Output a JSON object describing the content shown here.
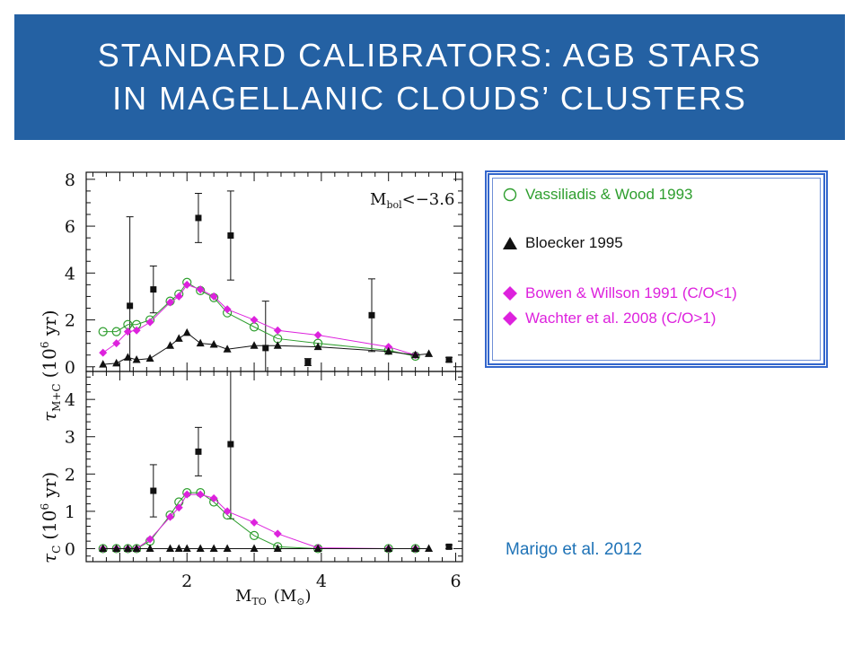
{
  "slide": {
    "title_line1": "STANDARD CALIBRATORS: AGB STARS",
    "title_line2": "IN MAGELLANIC CLOUDS’ CLUSTERS",
    "citation": "Marigo et al. 2012",
    "colors": {
      "title_bg": "#2461a3",
      "title_text": "#ffffff",
      "citation": "#1f73b7",
      "legend_border": "#3366cc"
    }
  },
  "legend": {
    "items": [
      {
        "label": "Vassiliadis & Wood 1993",
        "marker": "circle-open",
        "color": "#2e9e2e"
      },
      {
        "label": "Bloecker 1995",
        "marker": "triangle",
        "color": "#111111"
      },
      {
        "label": "Bowen & Willson 1991 (C/O<1)",
        "marker": "diamond",
        "color": "#dd22dd"
      },
      {
        "label": "Wachter et al. 2008 (C/O>1)",
        "marker": "diamond",
        "color": "#dd22dd"
      }
    ]
  },
  "chart_data": [
    {
      "type": "scatter",
      "panel": "top",
      "ylabel": "τM+C  (10⁶ yr)",
      "annotation": "Mbol<−3.6",
      "xlim": [
        0.5,
        6.1
      ],
      "ylim": [
        -0.2,
        8.3
      ],
      "yticks": [
        0,
        2,
        4,
        6,
        8
      ],
      "series": [
        {
          "marker": "square",
          "color": "#111111",
          "x": [
            1.15,
            1.5,
            2.17,
            2.65,
            3.17,
            3.8,
            4.75,
            5.9
          ],
          "y": [
            2.6,
            3.3,
            6.35,
            5.6,
            0.8,
            0.2,
            2.2,
            0.3
          ],
          "err": [
            3.8,
            1.0,
            1.05,
            1.9,
            2.0,
            0.15,
            1.55,
            0.1
          ]
        },
        {
          "marker": "circle-open",
          "color": "#2e9e2e",
          "x": [
            0.75,
            0.95,
            1.12,
            1.25,
            1.45,
            1.75,
            1.88,
            2.0,
            2.2,
            2.4,
            2.6,
            3.0,
            3.35,
            3.95,
            5.0,
            5.4
          ],
          "y": [
            1.5,
            1.5,
            1.8,
            1.8,
            2.0,
            2.8,
            3.1,
            3.6,
            3.25,
            2.95,
            2.3,
            1.7,
            1.2,
            1.0,
            0.7,
            0.45
          ]
        },
        {
          "marker": "diamond",
          "color": "#dd22dd",
          "x": [
            0.75,
            0.95,
            1.12,
            1.25,
            1.45,
            1.75,
            1.88,
            2.0,
            2.2,
            2.4,
            2.6,
            3.0,
            3.35,
            3.95,
            5.0,
            5.4
          ],
          "y": [
            0.6,
            1.0,
            1.5,
            1.55,
            1.9,
            2.75,
            3.0,
            3.5,
            3.3,
            3.0,
            2.45,
            2.0,
            1.55,
            1.35,
            0.85,
            0.5
          ]
        },
        {
          "marker": "triangle",
          "color": "#111111",
          "x": [
            0.75,
            0.95,
            1.12,
            1.25,
            1.45,
            1.75,
            1.88,
            2.0,
            2.2,
            2.4,
            2.6,
            3.0,
            3.35,
            3.95,
            5.0,
            5.4,
            5.6
          ],
          "y": [
            0.1,
            0.15,
            0.4,
            0.3,
            0.35,
            0.9,
            1.2,
            1.45,
            1.0,
            0.95,
            0.75,
            0.9,
            0.9,
            0.85,
            0.65,
            0.5,
            0.55
          ]
        }
      ]
    },
    {
      "type": "scatter",
      "panel": "bottom",
      "xlabel": "MTO  (M⊙)",
      "ylabel": "τC  (10⁶ yr)",
      "xlim": [
        0.5,
        6.1
      ],
      "ylim": [
        -0.35,
        4.75
      ],
      "xticks": [
        2,
        4,
        6
      ],
      "yticks": [
        0,
        1,
        2,
        3,
        4
      ],
      "series": [
        {
          "marker": "square",
          "color": "#111111",
          "x": [
            1.5,
            2.17,
            2.65,
            5.9
          ],
          "y": [
            1.55,
            2.6,
            2.8,
            0.05
          ],
          "err": [
            0.7,
            0.65,
            2.0,
            0.05
          ]
        },
        {
          "marker": "circle-open",
          "color": "#2e9e2e",
          "x": [
            0.75,
            0.95,
            1.12,
            1.25,
            1.45,
            1.75,
            1.88,
            2.0,
            2.2,
            2.4,
            2.6,
            3.0,
            3.35,
            3.95,
            5.0,
            5.4
          ],
          "y": [
            0,
            0,
            0,
            0,
            0.2,
            0.9,
            1.25,
            1.5,
            1.5,
            1.25,
            0.9,
            0.35,
            0.05,
            0,
            0,
            0
          ]
        },
        {
          "marker": "diamond",
          "color": "#dd22dd",
          "x": [
            0.75,
            0.95,
            1.12,
            1.25,
            1.45,
            1.75,
            1.88,
            2.0,
            2.2,
            2.4,
            2.6,
            3.0,
            3.35,
            3.95,
            5.0,
            5.4
          ],
          "y": [
            0,
            0,
            0,
            0,
            0.25,
            0.85,
            1.1,
            1.45,
            1.45,
            1.35,
            1.0,
            0.7,
            0.4,
            0.02,
            0,
            0
          ]
        },
        {
          "marker": "triangle",
          "color": "#111111",
          "x": [
            0.75,
            0.95,
            1.12,
            1.25,
            1.45,
            1.75,
            1.88,
            2.0,
            2.2,
            2.4,
            2.6,
            3.0,
            3.35,
            3.95,
            5.0,
            5.4,
            5.6
          ],
          "y": [
            0,
            0,
            0,
            0,
            0,
            0,
            0,
            0,
            0,
            0,
            0,
            0,
            0,
            0,
            0,
            0,
            0
          ]
        }
      ]
    }
  ]
}
